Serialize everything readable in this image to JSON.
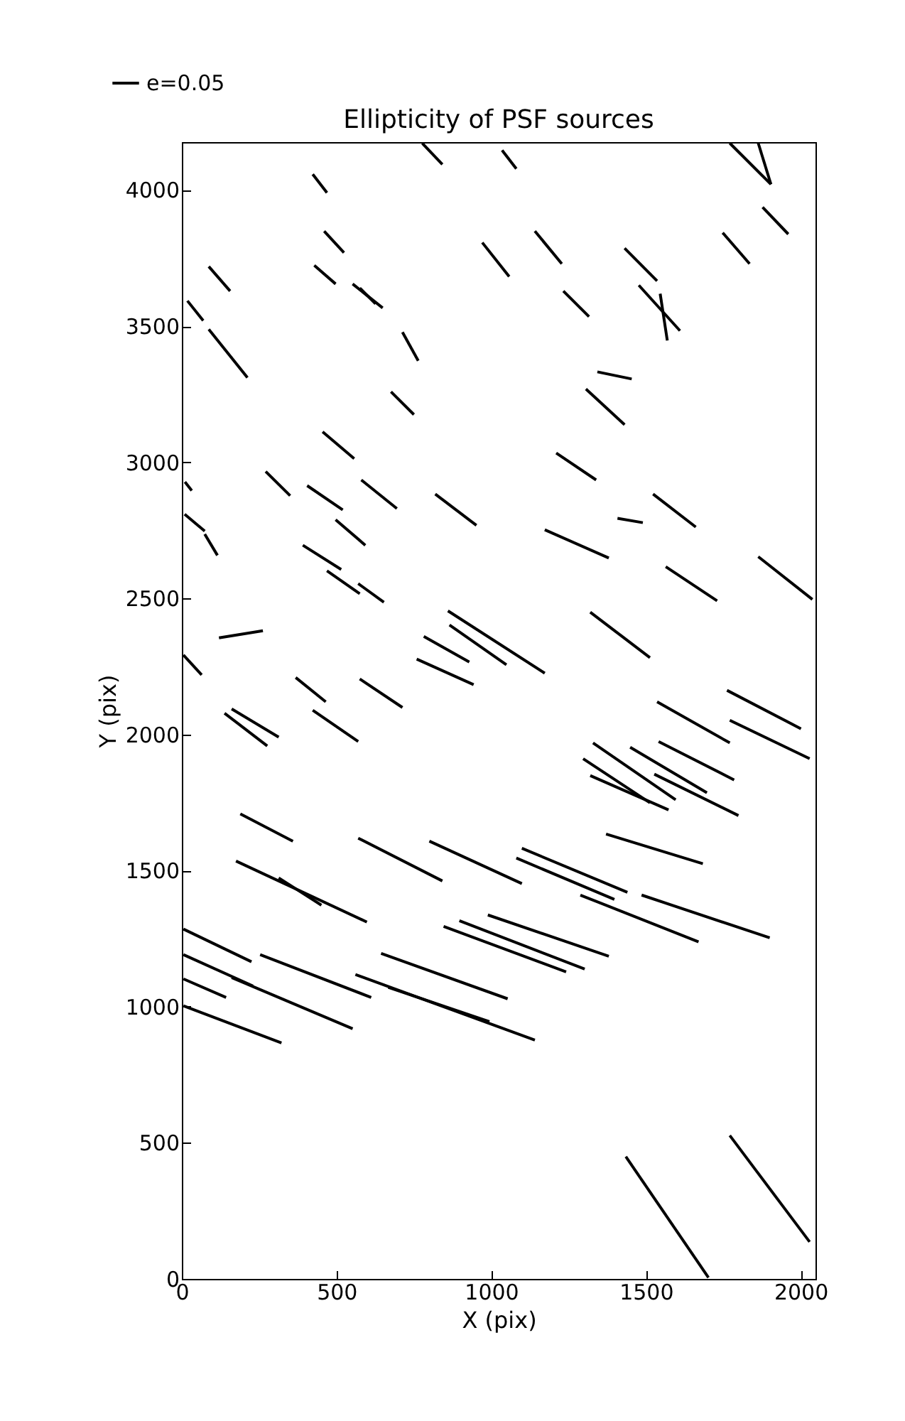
{
  "chart_data": {
    "type": "line",
    "title": "Ellipticity of PSF sources",
    "xlabel": "X (pix)",
    "ylabel": "Y (pix)",
    "xlim": [
      0,
      2048
    ],
    "ylim": [
      0,
      4176
    ],
    "xticks": [
      0,
      500,
      1000,
      1500,
      2000
    ],
    "yticks": [
      0,
      500,
      1000,
      1500,
      2000,
      2500,
      3000,
      3500,
      4000
    ],
    "grid": false,
    "legend": "top left",
    "line_style": "solid",
    "series": [
      {
        "name": "e=0.05",
        "color": "#000000",
        "x": [
          777,
          842
        ],
        "values": [
          4172,
          4094
        ]
      },
      {
        "color": "#000000",
        "x": [
          1035,
          1081
        ],
        "values": [
          4146,
          4078
        ]
      },
      {
        "color": "#000000",
        "x": [
          1771,
          1904
        ],
        "values": [
          4172,
          4021
        ]
      },
      {
        "color": "#000000",
        "x": [
          1863,
          1904
        ],
        "values": [
          4172,
          4021
        ]
      },
      {
        "color": "#000000",
        "x": [
          423,
          469
        ],
        "values": [
          4058,
          3990
        ]
      },
      {
        "color": "#000000",
        "x": [
          460,
          524
        ],
        "values": [
          3849,
          3770
        ]
      },
      {
        "color": "#000000",
        "x": [
          87,
          156
        ],
        "values": [
          3719,
          3629
        ]
      },
      {
        "color": "#000000",
        "x": [
          428,
          497
        ],
        "values": [
          3723,
          3655
        ]
      },
      {
        "color": "#000000",
        "x": [
          552,
          649
        ],
        "values": [
          3655,
          3567
        ]
      },
      {
        "color": "#000000",
        "x": [
          575,
          626
        ],
        "values": [
          3640,
          3582
        ]
      },
      {
        "color": "#000000",
        "x": [
          18,
          69
        ],
        "values": [
          3593,
          3520
        ]
      },
      {
        "color": "#000000",
        "x": [
          87,
          212
        ],
        "values": [
          3488,
          3311
        ]
      },
      {
        "color": "#000000",
        "x": [
          713,
          764
        ],
        "values": [
          3478,
          3373
        ]
      },
      {
        "color": "#000000",
        "x": [
          676,
          750
        ],
        "values": [
          3259,
          3175
        ]
      },
      {
        "color": "#000000",
        "x": [
          455,
          557
        ],
        "values": [
          3112,
          3013
        ]
      },
      {
        "color": "#000000",
        "x": [
          271,
          350
        ],
        "values": [
          2966,
          2877
        ]
      },
      {
        "color": "#000000",
        "x": [
          405,
          520
        ],
        "values": [
          2914,
          2825
        ]
      },
      {
        "color": "#000000",
        "x": [
          580,
          695
        ],
        "values": [
          2935,
          2830
        ]
      },
      {
        "color": "#000000",
        "x": [
          819,
          952
        ],
        "values": [
          2883,
          2768
        ]
      },
      {
        "color": "#000000",
        "x": [
          10,
          32
        ],
        "values": [
          2928,
          2896
        ]
      },
      {
        "color": "#000000",
        "x": [
          9,
          74
        ],
        "values": [
          2809,
          2747
        ]
      },
      {
        "color": "#000000",
        "x": [
          74,
          115
        ],
        "values": [
          2736,
          2658
        ]
      },
      {
        "color": "#000000",
        "x": [
          497,
          593
        ],
        "values": [
          2789,
          2695
        ]
      },
      {
        "color": "#000000",
        "x": [
          971,
          1058
        ],
        "values": [
          3807,
          3682
        ]
      },
      {
        "color": "#000000",
        "x": [
          1141,
          1228
        ],
        "values": [
          3849,
          3729
        ]
      },
      {
        "color": "#000000",
        "x": [
          1431,
          1536
        ],
        "values": [
          3786,
          3666
        ]
      },
      {
        "color": "#000000",
        "x": [
          1748,
          1835
        ],
        "values": [
          3843,
          3729
        ]
      },
      {
        "color": "#000000",
        "x": [
          1877,
          1960
        ],
        "values": [
          3937,
          3838
        ]
      },
      {
        "color": "#000000",
        "x": [
          1233,
          1316
        ],
        "values": [
          3629,
          3535
        ]
      },
      {
        "color": "#000000",
        "x": [
          1477,
          1610
        ],
        "values": [
          3650,
          3483
        ]
      },
      {
        "color": "#000000",
        "x": [
          1546,
          1569
        ],
        "values": [
          3619,
          3447
        ]
      },
      {
        "color": "#000000",
        "x": [
          1343,
          1454
        ],
        "values": [
          3332,
          3306
        ]
      },
      {
        "color": "#000000",
        "x": [
          1306,
          1431
        ],
        "values": [
          3269,
          3138
        ]
      },
      {
        "color": "#000000",
        "x": [
          1210,
          1339
        ],
        "values": [
          3034,
          2935
        ]
      },
      {
        "color": "#000000",
        "x": [
          1523,
          1661
        ],
        "values": [
          2883,
          2762
        ]
      },
      {
        "color": "#000000",
        "x": [
          1408,
          1490
        ],
        "values": [
          2794,
          2778
        ]
      },
      {
        "color": "#000000",
        "x": [
          1173,
          1380
        ],
        "values": [
          2752,
          2648
        ]
      },
      {
        "color": "#000000",
        "x": [
          391,
          515
        ],
        "values": [
          2695,
          2606
        ]
      },
      {
        "color": "#000000",
        "x": [
          469,
          575
        ],
        "values": [
          2601,
          2517
        ]
      },
      {
        "color": "#000000",
        "x": [
          570,
          653
        ],
        "values": [
          2554,
          2486
        ]
      },
      {
        "color": "#000000",
        "x": [
          120,
          262
        ],
        "values": [
          2355,
          2381
        ]
      },
      {
        "color": "#000000",
        "x": [
          5,
          64
        ],
        "values": [
          2292,
          2219
        ]
      },
      {
        "color": "#000000",
        "x": [
          368,
          465
        ],
        "values": [
          2209,
          2120
        ]
      },
      {
        "color": "#000000",
        "x": [
          575,
          713
        ],
        "values": [
          2204,
          2099
        ]
      },
      {
        "color": "#000000",
        "x": [
          138,
          276
        ],
        "values": [
          2078,
          1958
        ]
      },
      {
        "color": "#000000",
        "x": [
          161,
          313
        ],
        "values": [
          2094,
          1990
        ]
      },
      {
        "color": "#000000",
        "x": [
          423,
          570
        ],
        "values": [
          2089,
          1974
        ]
      },
      {
        "color": "#000000",
        "x": [
          860,
          1173
        ],
        "values": [
          2454,
          2225
        ]
      },
      {
        "color": "#000000",
        "x": [
          865,
          1049
        ],
        "values": [
          2402,
          2256
        ]
      },
      {
        "color": "#000000",
        "x": [
          782,
          929
        ],
        "values": [
          2360,
          2266
        ]
      },
      {
        "color": "#000000",
        "x": [
          759,
          943
        ],
        "values": [
          2277,
          2183
        ]
      },
      {
        "color": "#000000",
        "x": [
          189,
          359
        ],
        "values": [
          1708,
          1608
        ]
      },
      {
        "color": "#000000",
        "x": [
          570,
          842
        ],
        "values": [
          1619,
          1462
        ]
      },
      {
        "color": "#000000",
        "x": [
          800,
          1099
        ],
        "values": [
          1608,
          1452
        ]
      },
      {
        "color": "#000000",
        "x": [
          175,
          598
        ],
        "values": [
          1535,
          1311
        ]
      },
      {
        "color": "#000000",
        "x": [
          313,
          451
        ],
        "values": [
          1473,
          1373
        ]
      },
      {
        "color": "#000000",
        "x": [
          1564,
          1730
        ],
        "values": [
          2616,
          2491
        ]
      },
      {
        "color": "#000000",
        "x": [
          1863,
          2038
        ],
        "values": [
          2653,
          2496
        ]
      },
      {
        "color": "#000000",
        "x": [
          1320,
          1513
        ],
        "values": [
          2449,
          2282
        ]
      },
      {
        "color": "#000000",
        "x": [
          1536,
          1771
        ],
        "values": [
          2120,
          1969
        ]
      },
      {
        "color": "#000000",
        "x": [
          1762,
          2001
        ],
        "values": [
          2162,
          2021
        ]
      },
      {
        "color": "#000000",
        "x": [
          1771,
          2029
        ],
        "values": [
          2052,
          1911
        ]
      },
      {
        "color": "#000000",
        "x": [
          1329,
          1596
        ],
        "values": [
          1969,
          1760
        ]
      },
      {
        "color": "#000000",
        "x": [
          1449,
          1697
        ],
        "values": [
          1953,
          1786
        ]
      },
      {
        "color": "#000000",
        "x": [
          1541,
          1785
        ],
        "values": [
          1974,
          1833
        ]
      },
      {
        "color": "#000000",
        "x": [
          1297,
          1513
        ],
        "values": [
          1911,
          1749
        ]
      },
      {
        "color": "#000000",
        "x": [
          1320,
          1573
        ],
        "values": [
          1849,
          1723
        ]
      },
      {
        "color": "#000000",
        "x": [
          1527,
          1799
        ],
        "values": [
          1854,
          1702
        ]
      },
      {
        "color": "#000000",
        "x": [
          1371,
          1684
        ],
        "values": [
          1634,
          1525
        ]
      },
      {
        "color": "#000000",
        "x": [
          1099,
          1440
        ],
        "values": [
          1582,
          1420
        ]
      },
      {
        "color": "#000000",
        "x": [
          1081,
          1398
        ],
        "values": [
          1546,
          1394
        ]
      },
      {
        "color": "#000000",
        "x": [
          1288,
          1670
        ],
        "values": [
          1410,
          1238
        ]
      },
      {
        "color": "#000000",
        "x": [
          1486,
          1900
        ],
        "values": [
          1410,
          1253
        ]
      },
      {
        "color": "#000000",
        "x": [
          989,
          1380
        ],
        "values": [
          1337,
          1185
        ]
      },
      {
        "color": "#000000",
        "x": [
          846,
          1242
        ],
        "values": [
          1295,
          1128
        ]
      },
      {
        "color": "#000000",
        "x": [
          897,
          1302
        ],
        "values": [
          1316,
          1138
        ]
      },
      {
        "color": "#000000",
        "x": [
          5,
          225
        ],
        "values": [
          1285,
          1165
        ]
      },
      {
        "color": "#000000",
        "x": [
          5,
          230
        ],
        "values": [
          1191,
          1076
        ]
      },
      {
        "color": "#000000",
        "x": [
          161,
          552
        ],
        "values": [
          1107,
          919
        ]
      },
      {
        "color": "#000000",
        "x": [
          5,
          143
        ],
        "values": [
          1102,
          1034
        ]
      },
      {
        "color": "#000000",
        "x": [
          5,
          322
        ],
        "values": [
          1003,
          867
        ]
      },
      {
        "color": "#000000",
        "x": [
          253,
          612
        ],
        "values": [
          1191,
          1034
        ]
      },
      {
        "color": "#000000",
        "x": [
          644,
          1053
        ],
        "values": [
          1196,
          1029
        ]
      },
      {
        "color": "#000000",
        "x": [
          561,
          1141
        ],
        "values": [
          1118,
          877
        ]
      },
      {
        "color": "#000000",
        "x": [
          667,
          994
        ],
        "values": [
          1071,
          945
        ]
      },
      {
        "color": "#000000",
        "x": [
          1435,
          1702
        ],
        "values": [
          449,
          5
        ]
      },
      {
        "color": "#000000",
        "x": [
          1771,
          2029
        ],
        "values": [
          527,
          136
        ]
      }
    ]
  }
}
